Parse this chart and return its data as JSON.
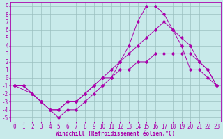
{
  "xlabel": "Windchill (Refroidissement éolien,°C)",
  "bg_color": "#c8eaea",
  "line_color": "#aa00aa",
  "xlim": [
    -0.5,
    23.5
  ],
  "ylim": [
    -5.5,
    9.5
  ],
  "xticks": [
    0,
    1,
    2,
    3,
    4,
    5,
    6,
    7,
    8,
    9,
    10,
    11,
    12,
    13,
    14,
    15,
    16,
    17,
    18,
    19,
    20,
    21,
    22,
    23
  ],
  "yticks": [
    -5,
    -4,
    -3,
    -2,
    -1,
    0,
    1,
    2,
    3,
    4,
    5,
    6,
    7,
    8,
    9
  ],
  "line1_x": [
    0,
    1,
    2,
    3,
    4,
    5,
    6,
    7,
    8,
    9,
    10,
    11,
    12,
    13,
    14,
    15,
    16,
    17,
    18,
    19,
    20,
    21,
    22,
    23
  ],
  "line1_y": [
    -1,
    -1,
    -2,
    -3,
    -4,
    -5,
    -4,
    -4,
    -3,
    -2,
    -1,
    0,
    2,
    4,
    7,
    9,
    9,
    8,
    6,
    4,
    1,
    1,
    0,
    -1
  ],
  "line2_x": [
    0,
    1,
    2,
    3,
    4,
    5,
    6,
    7,
    8,
    9,
    10,
    11,
    12,
    13,
    14,
    15,
    16,
    17,
    18,
    19,
    20,
    21,
    22,
    23
  ],
  "line2_y": [
    -1,
    -1,
    -2,
    -3,
    -4,
    -4,
    -3,
    -3,
    -2,
    -1,
    0,
    1,
    2,
    3,
    4,
    5,
    6,
    7,
    6,
    5,
    4,
    2,
    1,
    -1
  ],
  "line3_x": [
    0,
    2,
    3,
    4,
    5,
    6,
    7,
    8,
    9,
    10,
    11,
    12,
    13,
    14,
    15,
    16,
    17,
    18,
    19,
    20,
    21,
    22,
    23
  ],
  "line3_y": [
    -1,
    -2,
    -3,
    -4,
    -4,
    -3,
    -3,
    -2,
    -1,
    0,
    0,
    1,
    1,
    2,
    2,
    3,
    3,
    3,
    3,
    3,
    2,
    1,
    -1
  ],
  "grid_color": "#9bbfbf",
  "marker": "D",
  "markersize": 1.8,
  "linewidth": 0.7,
  "tick_fontsize": 5.5,
  "xlabel_fontsize": 5.5
}
